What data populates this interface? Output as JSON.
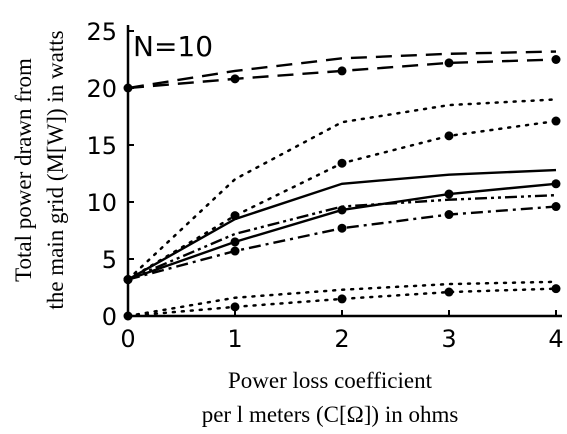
{
  "chart_data": {
    "type": "line",
    "annotation": "N=10",
    "xlabel_line1": "Power loss coefficient",
    "xlabel_line2": "per l meters (C[Ω]) in ohms",
    "ylabel_line1": "Total power drawn from",
    "ylabel_line2": "the main grid (M[W]) in watts",
    "xlim": [
      0,
      4
    ],
    "ylim": [
      0,
      25
    ],
    "x_ticks": [
      "0",
      "1",
      "2",
      "3",
      "4"
    ],
    "y_ticks": [
      "0",
      "5",
      "10",
      "15",
      "20",
      "25"
    ],
    "grid": false,
    "x": [
      0,
      1,
      2,
      3,
      4
    ],
    "series": [
      {
        "style": "dashed",
        "marker": false,
        "values": [
          20,
          21.5,
          22.6,
          23.0,
          23.2
        ]
      },
      {
        "style": "dashed",
        "marker": true,
        "values": [
          20,
          20.8,
          21.5,
          22.2,
          22.5
        ]
      },
      {
        "style": "dotted",
        "marker": false,
        "values": [
          3.2,
          12.0,
          17.0,
          18.5,
          19.0
        ]
      },
      {
        "style": "dotted",
        "marker": true,
        "values": [
          3.2,
          8.8,
          13.4,
          15.8,
          17.1
        ]
      },
      {
        "style": "solid",
        "marker": false,
        "values": [
          3.2,
          8.5,
          11.6,
          12.4,
          12.8
        ]
      },
      {
        "style": "solid",
        "marker": true,
        "values": [
          3.2,
          6.5,
          9.3,
          10.7,
          11.6
        ]
      },
      {
        "style": "dashdotdot",
        "marker": false,
        "values": [
          3.2,
          7.2,
          9.6,
          10.2,
          10.6
        ]
      },
      {
        "style": "dashdot",
        "marker": true,
        "values": [
          3.2,
          5.7,
          7.7,
          8.9,
          9.6
        ]
      },
      {
        "style": "dotted",
        "marker": false,
        "values": [
          0,
          1.6,
          2.3,
          2.8,
          3.0
        ]
      },
      {
        "style": "dotted",
        "marker": true,
        "values": [
          0,
          0.8,
          1.5,
          2.1,
          2.4
        ]
      }
    ]
  }
}
